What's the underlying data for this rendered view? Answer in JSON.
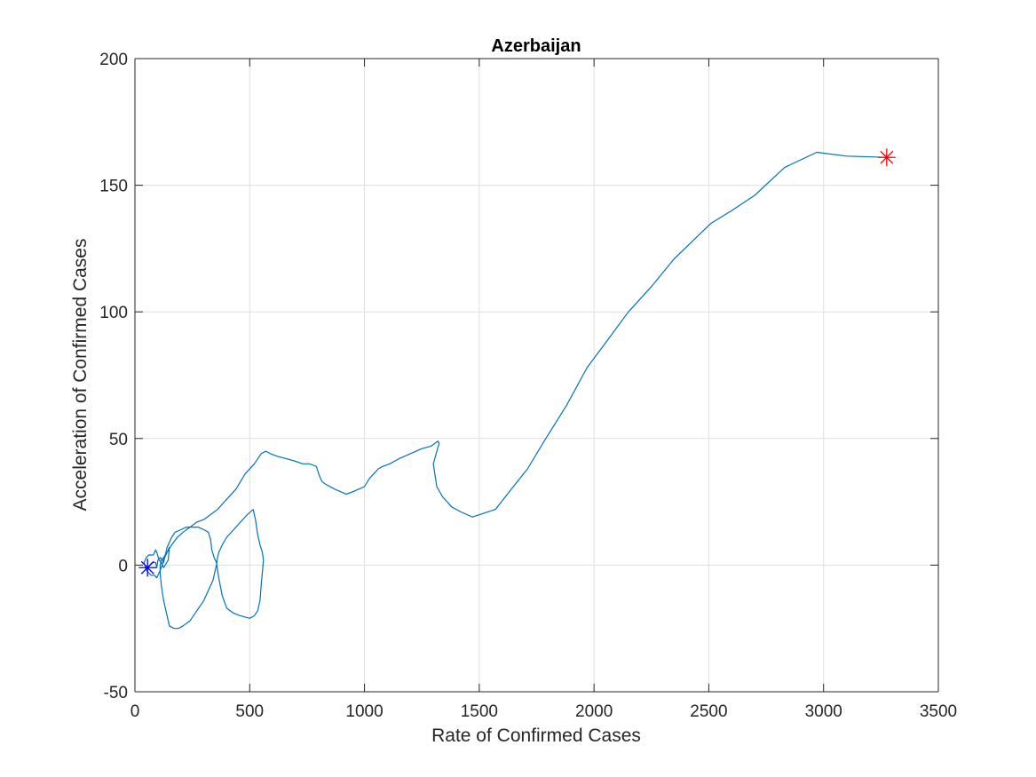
{
  "chart_data": {
    "type": "line",
    "title": "Azerbaijan",
    "xlabel": "Rate of Confirmed Cases",
    "ylabel": "Acceleration of Confirmed Cases",
    "xlim": [
      0,
      3500
    ],
    "ylim": [
      -50,
      200
    ],
    "xticks": [
      0,
      500,
      1000,
      1500,
      2000,
      2500,
      3000,
      3500
    ],
    "yticks": [
      -50,
      0,
      50,
      100,
      150,
      200
    ],
    "grid": true,
    "colors": {
      "line": "#0072bd",
      "start_marker": "#0000ff",
      "end_marker": "#ff0000"
    },
    "series": [
      {
        "x": [
          55,
          65,
          75,
          85,
          90,
          95,
          100,
          110,
          120,
          125,
          130,
          140,
          150,
          145,
          125,
          115,
          105,
          95,
          90,
          85,
          80,
          60,
          50,
          40,
          50,
          60,
          70,
          85,
          95,
          105,
          115,
          125,
          135,
          140,
          150,
          160,
          175,
          200,
          225,
          250,
          275,
          300,
          320,
          330,
          335,
          345,
          355,
          360,
          365,
          380,
          400,
          430,
          460,
          500,
          520,
          535,
          545,
          550,
          555,
          560,
          555,
          545,
          535,
          530,
          525,
          515,
          490,
          460,
          430,
          400,
          380,
          365,
          360,
          355,
          350,
          340,
          320,
          300,
          270,
          240,
          210,
          190,
          170,
          150,
          140,
          125,
          115,
          110,
          110,
          115,
          125,
          140,
          160,
          185,
          210,
          240,
          270,
          300,
          330,
          360,
          400,
          440,
          480,
          520,
          550,
          570,
          590,
          620,
          660,
          700,
          730,
          760,
          790,
          805,
          815,
          830,
          870,
          920,
          950,
          975,
          1000,
          1020,
          1040,
          1060,
          1080,
          1110,
          1150,
          1200,
          1250,
          1290,
          1320,
          1325,
          1300,
          1315,
          1340,
          1380,
          1420,
          1470,
          1570,
          1640,
          1710,
          1790,
          1880,
          1970,
          2060,
          2150,
          2250,
          2350,
          2430,
          2510,
          2600,
          2700,
          2830,
          2970,
          3100,
          3275
        ],
        "y": [
          -1,
          0,
          1,
          1,
          1,
          -1,
          2,
          3,
          2,
          1,
          3,
          5,
          7,
          2,
          -1,
          1,
          2,
          5,
          6,
          5,
          4,
          4,
          3,
          1,
          -2,
          -3,
          -4,
          -4,
          -5,
          -3,
          -1,
          2,
          5,
          7,
          9,
          11,
          13,
          14,
          15,
          15,
          15,
          14,
          13,
          10,
          6,
          3,
          1,
          -2,
          -5,
          -12,
          -17,
          -19,
          -20,
          -21,
          -20,
          -18,
          -14,
          -8,
          -3,
          2,
          5,
          8,
          12,
          15,
          18,
          22,
          20,
          17,
          14,
          11,
          8,
          5,
          3,
          0,
          -2,
          -6,
          -10,
          -14,
          -18,
          -22,
          -24,
          -25,
          -25,
          -24,
          -20,
          -14,
          -8,
          -3,
          0,
          2,
          3,
          5,
          8,
          11,
          13,
          15,
          17,
          18,
          20,
          22,
          26,
          30,
          36,
          40,
          44,
          45,
          44,
          43,
          42,
          41,
          40,
          40,
          39,
          35,
          33,
          32,
          30,
          28,
          29,
          30,
          31,
          34,
          36,
          38,
          39,
          40,
          42,
          44,
          46,
          47,
          49,
          48,
          40,
          31,
          27,
          23,
          21,
          19,
          22,
          30,
          38,
          50,
          63,
          78,
          89,
          100,
          110,
          121,
          128,
          135,
          140,
          146,
          157,
          163,
          161.5,
          161
        ]
      }
    ],
    "markers": [
      {
        "name": "start",
        "x": 55,
        "y": -1,
        "symbol": "*",
        "color": "#0000ff"
      },
      {
        "name": "end",
        "x": 3275,
        "y": 161,
        "symbol": "*",
        "color": "#ff0000"
      }
    ]
  }
}
